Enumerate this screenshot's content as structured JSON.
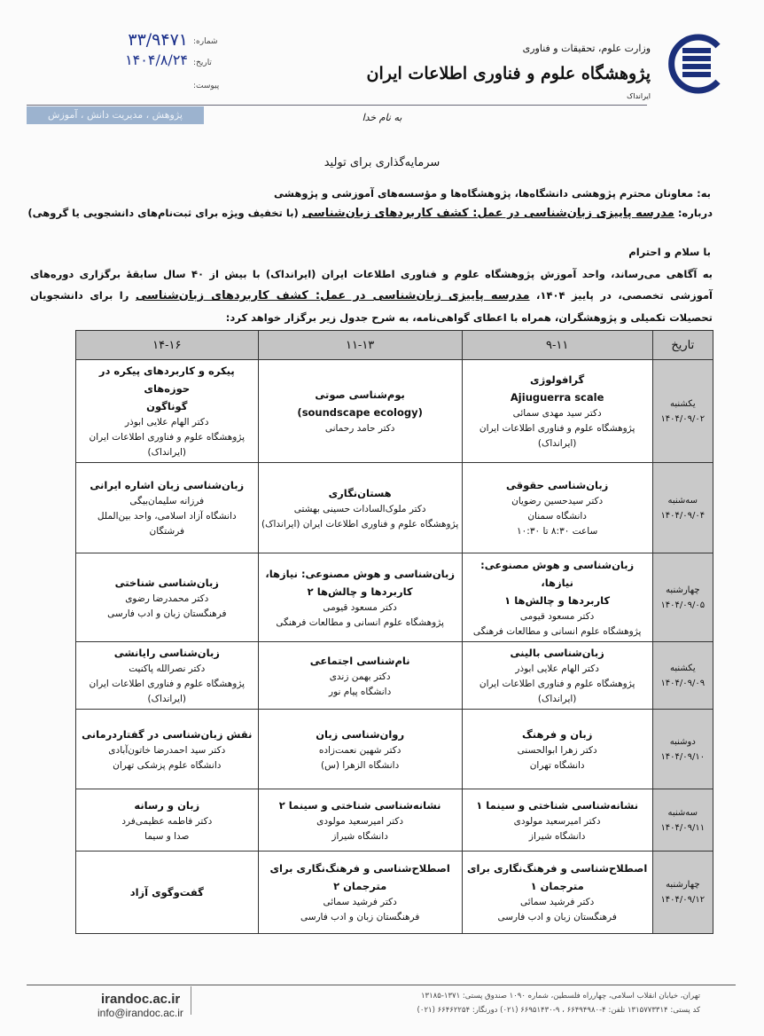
{
  "letterhead": {
    "ministry": "وزارت علوم، تحقیقات و فناوری",
    "institute": "پژوهشگاه علوم و فناوری اطلاعات ایران",
    "abbr": "ایرانداک",
    "band": "پژوهش ، مدیریت دانش ، آموزش",
    "logo_color": "#1b2f7a",
    "number_label": "شماره:",
    "number_value": "۳۳/۹۴۷۱",
    "date_label": "تاریخ:",
    "date_value": "۱۴۰۴/۸/۲۴",
    "attachment_label": "پیوست:"
  },
  "basmala": "به نام خدا",
  "slogan": "سرمایه‌گذاری برای تولید",
  "recipient": "به: معاونان محترم پژوهشی دانشگاه‌ها، پژوهشگاه‌ها و مؤسسه‌های آموزشی و پژوهشی",
  "subject": {
    "label": "درباره: ",
    "title": "مدرسه پاییزی زبان‌شناسی در عمل: کشف کاربردهای زبان‌شناسی",
    "note": " (با تخفیف ویژه برای ثبت‌نام‌های دانشجویی یا گروهی)"
  },
  "greeting": "با سلام و احترام",
  "body": {
    "part1": "به آگاهی می‌رساند، واحد آموزش پژوهشگاه علوم و فناوری اطلاعات ایران (ایرانداک) با بیش از ۴۰ سال سابقهٔ برگزاری دوره‌های آموزشی تخصصی، در پاییز ۱۴۰۴، ",
    "title": "مدرسه پاییزی زبان‌شناسی در عمل: کشف کاربردهای زبان‌شناسی",
    "part2": " را برای دانشجویان تحصیلات تکمیلی و پژوهشگران، همراه با اعطای گواهی‌نامه، به شرح جدول زیر برگزار خواهد کرد:"
  },
  "table": {
    "headers": [
      "تاریخ",
      "۹-۱۱",
      "۱۱-۱۳",
      "۱۴-۱۶"
    ],
    "rows": [
      {
        "day": "یکشنبه",
        "date": "۱۴۰۴/۰۹/۰۲",
        "cells": [
          {
            "title": [
              "گرافولوژی",
              "Ajiuguerra scale"
            ],
            "lines": [
              "دکتر سید مهدی سمائی",
              "پژوهشگاه علوم و فناوری اطلاعات ایران (ایرانداک)"
            ]
          },
          {
            "title": [
              "بوم‌شناسی صوتی",
              "(soundscape ecology)"
            ],
            "lines": [
              "دکتر حامد رحمانی"
            ]
          },
          {
            "title": [
              "پیکره و کاربردهای پیکره در حوزه‌های",
              "گوناگون"
            ],
            "lines": [
              "دکتر الهام علایی ابوذر",
              "پژوهشگاه علوم و فناوری اطلاعات ایران (ایرانداک)"
            ]
          }
        ]
      },
      {
        "day": "سه‌شنبه",
        "date": "۱۴۰۴/۰۹/۰۴",
        "cells": [
          {
            "title": [
              "زبان‌شناسی حقوقی"
            ],
            "lines": [
              "دکتر سیدحسین رضویان",
              "دانشگاه سمنان",
              "ساعت ۸:۳۰ تا ۱۰:۳۰"
            ]
          },
          {
            "title": [
              "هستان‌نگاری"
            ],
            "lines": [
              "دکتر ملوک‌السادات حسینی بهشتی",
              "پژوهشگاه علوم و فناوری اطلاعات ایران (ایرانداک)"
            ]
          },
          {
            "title": [
              "زبان‌شناسی زبان اشاره ایرانی"
            ],
            "lines": [
              "فرزانه سلیمان‌بیگی",
              "دانشگاه آزاد اسلامی، واحد بین‌الملل فرشتگان"
            ]
          }
        ]
      },
      {
        "day": "چهارشنبه",
        "date": "۱۴۰۴/۰۹/۰۵",
        "cells": [
          {
            "title": [
              "زبان‌شناسی و هوش مصنوعی: نیازها،",
              "کاربردها و چالش‌ها ۱"
            ],
            "lines": [
              "دکتر مسعود قیومی",
              "پژوهشگاه علوم انسانی و مطالعات فرهنگی"
            ]
          },
          {
            "title": [
              "زبان‌شناسی و هوش مصنوعی: نیازها،",
              "کاربردها و چالش‌ها ۲"
            ],
            "lines": [
              "دکتر مسعود قیومی",
              "پژوهشگاه علوم انسانی و مطالعات فرهنگی"
            ]
          },
          {
            "title": [
              "زبان‌شناسی شناختی"
            ],
            "lines": [
              "دکتر محمدرضا رضوی",
              "فرهنگستان زبان و ادب فارسی"
            ]
          }
        ]
      },
      {
        "day": "یکشنبه",
        "date": "۱۴۰۴/۰۹/۰۹",
        "cells": [
          {
            "title": [
              "زبان‌شناسی بالینی"
            ],
            "lines": [
              "دکتر الهام علایی ابوذر",
              "پژوهشگاه علوم و فناوری اطلاعات ایران (ایرانداک)"
            ]
          },
          {
            "title": [
              "نام‌شناسی اجتماعی"
            ],
            "lines": [
              "دکتر بهمن زندی",
              "دانشگاه پیام نور"
            ]
          },
          {
            "title": [
              "زبان‌شناسی رایانشی"
            ],
            "lines": [
              "دکتر نصرالله پاکنیت",
              "پژوهشگاه علوم و فناوری اطلاعات ایران (ایرانداک)"
            ]
          }
        ]
      },
      {
        "day": "دوشنبه",
        "date": "۱۴۰۴/۰۹/۱۰",
        "cells": [
          {
            "title": [
              "زبان و فرهنگ"
            ],
            "lines": [
              "دکتر زهرا ابوالحسنی",
              "دانشگاه تهران"
            ]
          },
          {
            "title": [
              "روان‌شناسی زبان"
            ],
            "lines": [
              "دکتر شهین نعمت‌زاده",
              "دانشگاه الزهرا (س)"
            ]
          },
          {
            "title": [
              "نقش زبان‌شناسی در گفتاردرمانی"
            ],
            "lines": [
              "دکتر سید احمدرضا خاتون‌آبادی",
              "دانشگاه علوم پزشکی تهران"
            ]
          }
        ]
      },
      {
        "day": "سه‌شنبه",
        "date": "۱۴۰۴/۰۹/۱۱",
        "cells": [
          {
            "title": [
              "نشانه‌شناسی شناختی و سینما ۱"
            ],
            "lines": [
              "دکتر امیرسعید مولودی",
              "دانشگاه شیراز"
            ]
          },
          {
            "title": [
              "نشانه‌شناسی شناختی و سینما ۲"
            ],
            "lines": [
              "دکتر امیرسعید مولودی",
              "دانشگاه شیراز"
            ]
          },
          {
            "title": [
              "زبان و رسانه"
            ],
            "lines": [
              "دکتر فاطمه عظیمی‌فرد",
              "صدا و سیما"
            ]
          }
        ]
      },
      {
        "day": "چهارشنبه",
        "date": "۱۴۰۴/۰۹/۱۲",
        "cells": [
          {
            "title": [
              "اصطلاح‌شناسی و فرهنگ‌نگاری برای",
              "مترجمان ۱"
            ],
            "lines": [
              "دکتر فرشید سمائی",
              "فرهنگستان زبان و ادب فارسی"
            ]
          },
          {
            "title": [
              "اصطلاح‌شناسی و فرهنگ‌نگاری برای",
              "مترجمان ۲"
            ],
            "lines": [
              "دکتر فرشید سمائی",
              "فرهنگستان زبان و ادب فارسی"
            ]
          },
          {
            "title": [
              "گفت‌وگوی آزاد"
            ],
            "lines": []
          }
        ]
      }
    ]
  },
  "footer": {
    "website": "irandoc.ac.ir",
    "email": "info@irandoc.ac.ir",
    "address": "تهران، خیابان انقلاب اسلامی، چهارراه فلسطین، شماره ۱۰۹۰      صندوق پستی: ۱۳۷۱-۱۳۱۸۵",
    "contact": "کد پستی: ۱۳۱۵۷۷۳۳۱۴    تلفن: ۴-۶۶۴۹۴۹۸۰ ، ۹-۶۶۹۵۱۴۳۰ (۰۲۱)    دورنگار: ۶۶۴۶۲۲۵۴ (۰۲۱)"
  }
}
